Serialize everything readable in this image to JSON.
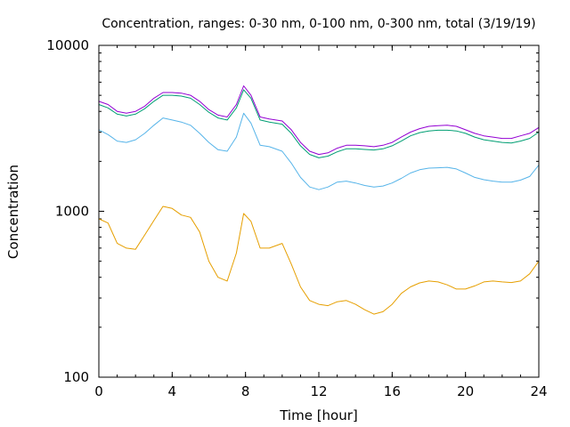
{
  "chart_data": {
    "type": "line",
    "title": "Concentration, ranges: 0-30 nm, 0-100 nm, 0-300 nm, total (3/19/19)",
    "xlabel": "Time [hour]",
    "ylabel": "Concentration",
    "xlim": [
      0,
      24
    ],
    "ylim": [
      100,
      10000
    ],
    "yscale": "log",
    "grid": false,
    "legend": "none",
    "x_ticks": [
      "0",
      "4",
      "8",
      "12",
      "16",
      "20",
      "24"
    ],
    "y_ticks": [
      "100",
      "1000",
      "10000"
    ],
    "x": [
      0,
      0.5,
      1,
      1.5,
      2,
      2.5,
      3,
      3.5,
      4,
      4.5,
      5,
      5.5,
      6,
      6.5,
      7,
      7.5,
      7.9,
      8.3,
      8.8,
      9.3,
      10,
      10.5,
      11,
      11.5,
      12,
      12.5,
      13,
      13.5,
      14,
      14.5,
      15,
      15.5,
      16,
      16.5,
      17,
      17.5,
      18,
      18.5,
      19,
      19.5,
      20,
      20.5,
      21,
      21.5,
      22,
      22.5,
      23,
      23.5,
      24
    ],
    "series": [
      {
        "color": "#9400d3",
        "values": [
          4600,
          4400,
          4000,
          3900,
          4000,
          4300,
          4800,
          5200,
          5200,
          5150,
          5000,
          4600,
          4100,
          3800,
          3700,
          4400,
          5700,
          5000,
          3700,
          3600,
          3500,
          3100,
          2600,
          2300,
          2200,
          2250,
          2400,
          2500,
          2500,
          2480,
          2450,
          2500,
          2600,
          2800,
          3000,
          3150,
          3250,
          3280,
          3300,
          3250,
          3100,
          2950,
          2850,
          2800,
          2750,
          2750,
          2850,
          2950,
          3200
        ]
      },
      {
        "color": "#009e73",
        "values": [
          4400,
          4200,
          3850,
          3750,
          3850,
          4150,
          4600,
          5000,
          5000,
          4950,
          4800,
          4400,
          3950,
          3650,
          3550,
          4200,
          5400,
          4800,
          3550,
          3450,
          3350,
          2950,
          2480,
          2200,
          2100,
          2150,
          2280,
          2380,
          2380,
          2360,
          2340,
          2380,
          2480,
          2650,
          2850,
          2980,
          3050,
          3080,
          3080,
          3050,
          2950,
          2800,
          2700,
          2650,
          2600,
          2580,
          2650,
          2750,
          3000
        ]
      },
      {
        "color": "#56b4e9",
        "values": [
          3100,
          2900,
          2650,
          2600,
          2700,
          2950,
          3300,
          3650,
          3550,
          3450,
          3300,
          2950,
          2600,
          2350,
          2300,
          2800,
          3900,
          3400,
          2500,
          2450,
          2300,
          1950,
          1600,
          1400,
          1350,
          1400,
          1500,
          1520,
          1480,
          1430,
          1400,
          1420,
          1480,
          1580,
          1700,
          1780,
          1820,
          1830,
          1840,
          1800,
          1700,
          1600,
          1550,
          1520,
          1500,
          1500,
          1540,
          1620,
          1900
        ]
      },
      {
        "color": "#e69f00",
        "values": [
          900,
          850,
          640,
          600,
          590,
          720,
          880,
          1070,
          1040,
          950,
          920,
          750,
          500,
          400,
          380,
          560,
          970,
          870,
          600,
          600,
          640,
          480,
          350,
          290,
          275,
          270,
          285,
          290,
          275,
          255,
          240,
          248,
          275,
          320,
          350,
          370,
          380,
          375,
          360,
          340,
          340,
          355,
          375,
          380,
          375,
          372,
          380,
          420,
          500
        ]
      }
    ]
  }
}
